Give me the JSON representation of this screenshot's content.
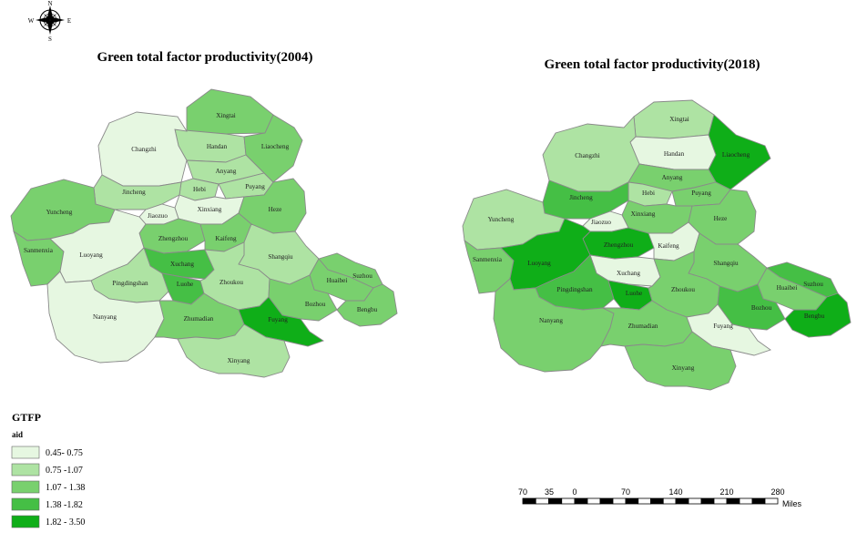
{
  "compass": {
    "north": "N",
    "south": "S",
    "east": "E",
    "west": "W"
  },
  "legend": {
    "title": "GTFP",
    "subtitle": "aid",
    "classes": [
      {
        "label": "0.45- 0.75",
        "color": "#e6f7e1"
      },
      {
        "label": "0.75 -1.07",
        "color": "#aee3a3"
      },
      {
        "label": "1.07 - 1.38",
        "color": "#79d06e"
      },
      {
        "label": "1.38 -1.82",
        "color": "#45bf45"
      },
      {
        "label": "1.82 - 3.50",
        "color": "#0fae18"
      }
    ]
  },
  "scale_bar": {
    "ticks": [
      "70",
      "35",
      "0",
      "70",
      "140",
      "210",
      "280"
    ],
    "unit": "Miles"
  },
  "maps": [
    {
      "title": "Green total factor productivity(2004)",
      "regions": [
        {
          "name": "Xingtai",
          "class": 2
        },
        {
          "name": "Handan",
          "class": 1
        },
        {
          "name": "Liaocheng",
          "class": 2
        },
        {
          "name": "Changzhi",
          "class": 0
        },
        {
          "name": "Anyang",
          "class": 1
        },
        {
          "name": "Hebi",
          "class": 1
        },
        {
          "name": "Puyang",
          "class": 1
        },
        {
          "name": "Jincheng",
          "class": 1
        },
        {
          "name": "Xinxiang",
          "class": 0
        },
        {
          "name": "Jiaozuo",
          "class": 0
        },
        {
          "name": "Heze",
          "class": 2
        },
        {
          "name": "Yuncheng",
          "class": 2
        },
        {
          "name": "Zhengzhou",
          "class": 2
        },
        {
          "name": "Kaifeng",
          "class": 2
        },
        {
          "name": "Sanmenxia",
          "class": 2
        },
        {
          "name": "Luoyang",
          "class": 0
        },
        {
          "name": "Xuchang",
          "class": 3
        },
        {
          "name": "Shangqiu",
          "class": 1
        },
        {
          "name": "Suzhou",
          "class": 2
        },
        {
          "name": "Pingdingshan",
          "class": 1
        },
        {
          "name": "Luohe",
          "class": 3
        },
        {
          "name": "Zhoukou",
          "class": 1
        },
        {
          "name": "Huaibei",
          "class": 2
        },
        {
          "name": "Bozhou",
          "class": 2
        },
        {
          "name": "Nanyang",
          "class": 0
        },
        {
          "name": "Bengbu",
          "class": 2
        },
        {
          "name": "Zhumadian",
          "class": 2
        },
        {
          "name": "Fuyang",
          "class": 4
        },
        {
          "name": "Xinyang",
          "class": 1
        }
      ]
    },
    {
      "title": "Green total factor productivity(2018)",
      "regions": [
        {
          "name": "Xingtai",
          "class": 1
        },
        {
          "name": "Handan",
          "class": 0
        },
        {
          "name": "Liaocheng",
          "class": 4
        },
        {
          "name": "Changzhi",
          "class": 1
        },
        {
          "name": "Anyang",
          "class": 2
        },
        {
          "name": "Hebi",
          "class": 1
        },
        {
          "name": "Puyang",
          "class": 2
        },
        {
          "name": "Jincheng",
          "class": 3
        },
        {
          "name": "Xinxiang",
          "class": 2
        },
        {
          "name": "Jiaozuo",
          "class": 0
        },
        {
          "name": "Heze",
          "class": 2
        },
        {
          "name": "Yuncheng",
          "class": 1
        },
        {
          "name": "Zhengzhou",
          "class": 4
        },
        {
          "name": "Kaifeng",
          "class": 0
        },
        {
          "name": "Sanmenxia",
          "class": 2
        },
        {
          "name": "Luoyang",
          "class": 4
        },
        {
          "name": "Xuchang",
          "class": 0
        },
        {
          "name": "Shangqiu",
          "class": 2
        },
        {
          "name": "Suzhou",
          "class": 3
        },
        {
          "name": "Pingdingshan",
          "class": 3
        },
        {
          "name": "Luohe",
          "class": 4
        },
        {
          "name": "Zhoukou",
          "class": 2
        },
        {
          "name": "Huaibei",
          "class": 2
        },
        {
          "name": "Bozhou",
          "class": 3
        },
        {
          "name": "Nanyang",
          "class": 2
        },
        {
          "name": "Bengbu",
          "class": 4
        },
        {
          "name": "Zhumadian",
          "class": 2
        },
        {
          "name": "Fuyang",
          "class": 0
        },
        {
          "name": "Xinyang",
          "class": 2
        }
      ]
    }
  ]
}
